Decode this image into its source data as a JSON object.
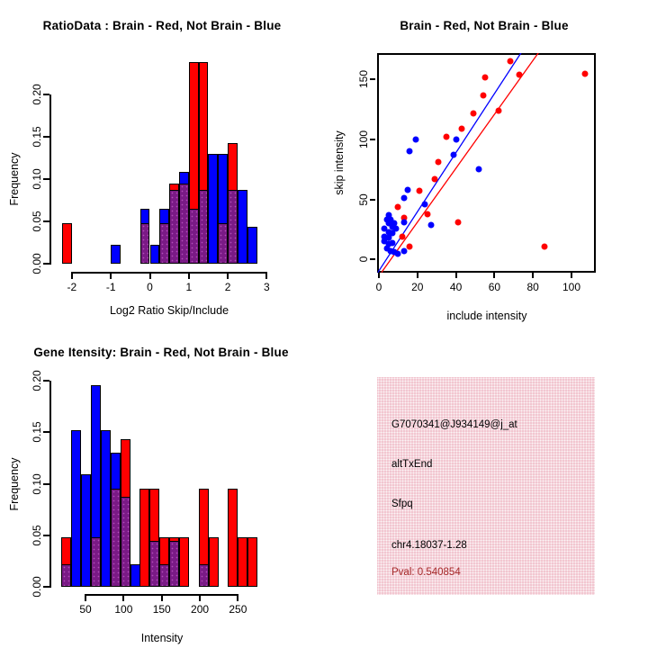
{
  "colors": {
    "red": "#ff0000",
    "blue": "#0000ff",
    "overlap_purple": "#7a1a86",
    "pval_red": "#a52a2a",
    "info_box_pink": "#f2c6d0",
    "axis_black": "#000000",
    "background": "#ffffff"
  },
  "chart_data": [
    {
      "id": "ratio_histogram",
      "type": "bar",
      "subtype": "overlaid-histogram",
      "position": "top-left",
      "title": "RatioData : Brain - Red, Not Brain - Blue",
      "xlabel": "Log2 Ratio Skip/Include",
      "ylabel": "Frequency",
      "x_ticks": [
        "-2",
        "-1",
        "0",
        "1",
        "2",
        "3"
      ],
      "x_tick_values": [
        -2,
        -1,
        0,
        1,
        2,
        3
      ],
      "y_ticks": [
        "0.00",
        "0.05",
        "0.10",
        "0.15",
        "0.20"
      ],
      "y_tick_values": [
        0,
        0.05,
        0.1,
        0.15,
        0.2
      ],
      "xlim": [
        -2.5,
        3.1
      ],
      "ylim": [
        0,
        0.24
      ],
      "bin_width": 0.25,
      "series_legend": [
        {
          "name": "Brain",
          "color": "red"
        },
        {
          "name": "Not Brain",
          "color": "blue"
        }
      ],
      "bins": [
        {
          "x": -2.25,
          "red": 0.048,
          "blue": 0
        },
        {
          "x": -1,
          "red": 0,
          "blue": 0.022
        },
        {
          "x": -0.25,
          "red": 0.048,
          "blue": 0.065
        },
        {
          "x": 0,
          "red": 0,
          "blue": 0.022
        },
        {
          "x": 0.25,
          "red": 0.048,
          "blue": 0.065
        },
        {
          "x": 0.5,
          "red": 0.095,
          "blue": 0.087
        },
        {
          "x": 0.75,
          "red": 0.095,
          "blue": 0.109
        },
        {
          "x": 1,
          "red": 0.238,
          "blue": 0.065
        },
        {
          "x": 1.25,
          "red": 0.238,
          "blue": 0.087
        },
        {
          "x": 1.5,
          "red": 0,
          "blue": 0.13
        },
        {
          "x": 1.75,
          "red": 0.048,
          "blue": 0.13
        },
        {
          "x": 2,
          "red": 0.143,
          "blue": 0.087
        },
        {
          "x": 2.25,
          "red": 0,
          "blue": 0.087
        },
        {
          "x": 2.5,
          "red": 0,
          "blue": 0.044
        }
      ]
    },
    {
      "id": "intensity_scatter",
      "type": "scatter",
      "position": "top-right",
      "title": "Brain - Red, Not Brain - Blue",
      "xlabel": "include intensity",
      "ylabel": "skip intensity",
      "x_ticks": [
        "0",
        "20",
        "40",
        "60",
        "80",
        "100"
      ],
      "x_tick_values": [
        0,
        20,
        40,
        60,
        80,
        100
      ],
      "y_ticks": [
        "0",
        "50",
        "100",
        "150"
      ],
      "y_tick_values": [
        0,
        50,
        100,
        150
      ],
      "xlim": [
        -1,
        113
      ],
      "ylim": [
        -11,
        172
      ],
      "series": [
        {
          "name": "Brain",
          "color": "red",
          "points": [
            [
              68,
              165
            ],
            [
              73,
              154
            ],
            [
              107,
              155
            ],
            [
              55,
              152
            ],
            [
              54,
              137
            ],
            [
              62,
              124
            ],
            [
              49,
              122
            ],
            [
              43,
              109
            ],
            [
              35,
              102
            ],
            [
              31,
              81
            ],
            [
              29,
              67
            ],
            [
              21,
              57
            ],
            [
              10,
              44
            ],
            [
              25,
              38
            ],
            [
              13,
              35
            ],
            [
              41,
              31
            ],
            [
              12,
              19
            ],
            [
              16,
              11
            ],
            [
              86,
              11
            ]
          ]
        },
        {
          "name": "Not Brain",
          "color": "blue",
          "points": [
            [
              19,
              100
            ],
            [
              40,
              100
            ],
            [
              16,
              90
            ],
            [
              39,
              87
            ],
            [
              52,
              75
            ],
            [
              15,
              58
            ],
            [
              13,
              51
            ],
            [
              24,
              46
            ],
            [
              27,
              29
            ],
            [
              13,
              31
            ],
            [
              5,
              37
            ],
            [
              4,
              33
            ],
            [
              6,
              33
            ],
            [
              8,
              30
            ],
            [
              5,
              30
            ],
            [
              3,
              26
            ],
            [
              7,
              27
            ],
            [
              9,
              26
            ],
            [
              5,
              23
            ],
            [
              7,
              22
            ],
            [
              3,
              19
            ],
            [
              5,
              18
            ],
            [
              3,
              15
            ],
            [
              7,
              14
            ],
            [
              5,
              13
            ],
            [
              4,
              9
            ],
            [
              6,
              7
            ],
            [
              8,
              6
            ],
            [
              10,
              5
            ],
            [
              13,
              7
            ]
          ]
        }
      ],
      "fit_lines": [
        {
          "series": "Not Brain",
          "color": "blue",
          "from": [
            -0.4,
            -11
          ],
          "to": [
            74,
            172
          ]
        },
        {
          "series": "Brain",
          "color": "red",
          "from": [
            1.5,
            -11
          ],
          "to": [
            83,
            172
          ]
        }
      ]
    },
    {
      "id": "gene_intensity_histogram",
      "type": "bar",
      "subtype": "overlaid-histogram",
      "position": "bottom-left",
      "title": "Gene Itensity: Brain - Red, Not Brain - Blue",
      "xlabel": "Intensity",
      "ylabel": "Frequency",
      "x_ticks": [
        "50",
        "100",
        "150",
        "200",
        "250"
      ],
      "x_tick_values": [
        50,
        100,
        150,
        200,
        250
      ],
      "y_ticks": [
        "0.00",
        "0.05",
        "0.10",
        "0.15",
        "0.20"
      ],
      "y_tick_values": [
        0,
        0.05,
        0.1,
        0.15,
        0.2
      ],
      "xlim": [
        15,
        280
      ],
      "ylim": [
        0,
        0.2
      ],
      "bin_width": 12.86,
      "series_legend": [
        {
          "name": "Brain",
          "color": "red"
        },
        {
          "name": "Not Brain",
          "color": "blue"
        }
      ],
      "bins": [
        {
          "x": 18.6,
          "red": 0.048,
          "blue": 0.022
        },
        {
          "x": 31.4,
          "red": 0,
          "blue": 0.152
        },
        {
          "x": 44.3,
          "red": 0,
          "blue": 0.109
        },
        {
          "x": 57.1,
          "red": 0.048,
          "blue": 0.196
        },
        {
          "x": 70,
          "red": 0,
          "blue": 0.152
        },
        {
          "x": 82.9,
          "red": 0.095,
          "blue": 0.13
        },
        {
          "x": 95.7,
          "red": 0.143,
          "blue": 0.087
        },
        {
          "x": 108.6,
          "red": 0,
          "blue": 0.022
        },
        {
          "x": 121.4,
          "red": 0.095,
          "blue": 0
        },
        {
          "x": 134.3,
          "red": 0.095,
          "blue": 0.044
        },
        {
          "x": 147.1,
          "red": 0.048,
          "blue": 0.022
        },
        {
          "x": 160,
          "red": 0.048,
          "blue": 0.044
        },
        {
          "x": 172.9,
          "red": 0.048,
          "blue": 0
        },
        {
          "x": 198.6,
          "red": 0.095,
          "blue": 0.022
        },
        {
          "x": 211.4,
          "red": 0.048,
          "blue": 0
        },
        {
          "x": 237.1,
          "red": 0.095,
          "blue": 0
        },
        {
          "x": 250,
          "red": 0.048,
          "blue": 0
        },
        {
          "x": 262.9,
          "red": 0.048,
          "blue": 0
        }
      ]
    },
    {
      "id": "info_panel",
      "type": "text",
      "position": "bottom-right",
      "lines": [
        {
          "label": "probe-id",
          "text": "G7070341@J934149@j_at",
          "color": "black"
        },
        {
          "label": "event-type",
          "text": "altTxEnd",
          "color": "black"
        },
        {
          "label": "gene-symbol",
          "text": "Sfpq",
          "color": "black"
        },
        {
          "label": "locus",
          "text": "chr4.18037-1.28",
          "color": "black"
        },
        {
          "label": "pvalue",
          "text": "Pval: 0.540854",
          "color": "dark-red"
        }
      ]
    }
  ]
}
